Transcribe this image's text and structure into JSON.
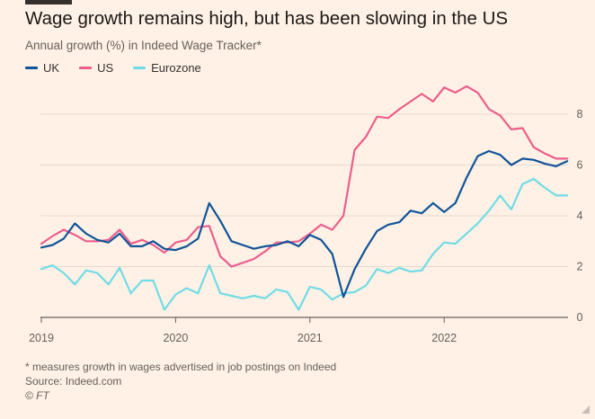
{
  "header": {
    "title": "Wage growth remains high, but has been slowing in the US",
    "subtitle": "Annual growth (%) in Indeed Wage Tracker*"
  },
  "footer": {
    "note": "* measures growth in wages advertised in job postings on Indeed",
    "source": "Source: Indeed.com",
    "credit": "© FT"
  },
  "colors": {
    "background": "#fff1e5",
    "uk": "#0f5499",
    "us": "#eb5e8d",
    "eurozone": "#70dce6"
  },
  "chart_data": {
    "type": "line",
    "title": "Wage growth remains high, but has been slowing in the US",
    "subtitle": "Annual growth (%) in Indeed Wage Tracker*",
    "xlabel": "",
    "ylabel": "",
    "x_ticks": [
      "2019",
      "2020",
      "2021",
      "2022"
    ],
    "y_ticks": [
      "0",
      "2",
      "4",
      "6",
      "8"
    ],
    "ylim": [
      0,
      9.5
    ],
    "grid": true,
    "legend_position": "top-left",
    "x": [
      "2019-01",
      "2019-02",
      "2019-03",
      "2019-04",
      "2019-05",
      "2019-06",
      "2019-07",
      "2019-08",
      "2019-09",
      "2019-10",
      "2019-11",
      "2019-12",
      "2020-01",
      "2020-02",
      "2020-03",
      "2020-04",
      "2020-05",
      "2020-06",
      "2020-07",
      "2020-08",
      "2020-09",
      "2020-10",
      "2020-11",
      "2020-12",
      "2021-01",
      "2021-02",
      "2021-03",
      "2021-04",
      "2021-05",
      "2021-06",
      "2021-07",
      "2021-08",
      "2021-09",
      "2021-10",
      "2021-11",
      "2021-12",
      "2022-01",
      "2022-02",
      "2022-03",
      "2022-04",
      "2022-05",
      "2022-06",
      "2022-07",
      "2022-08",
      "2022-09",
      "2022-10",
      "2022-11",
      "2022-12"
    ],
    "series": [
      {
        "name": "UK",
        "color": "#0f5499",
        "values": [
          2.75,
          2.85,
          3.1,
          3.7,
          3.3,
          3.05,
          2.95,
          3.3,
          2.8,
          2.8,
          3.0,
          2.7,
          2.65,
          2.8,
          3.1,
          4.5,
          3.8,
          3.0,
          2.85,
          2.7,
          2.8,
          2.85,
          3.0,
          2.8,
          3.25,
          3.05,
          2.5,
          0.8,
          1.9,
          2.7,
          3.4,
          3.65,
          3.75,
          4.2,
          4.1,
          4.5,
          4.15,
          4.5,
          5.5,
          6.35,
          6.55,
          6.4,
          6.0,
          6.25,
          6.2,
          6.05,
          5.95,
          6.15
        ]
      },
      {
        "name": "US",
        "color": "#eb5e8d",
        "values": [
          2.9,
          3.2,
          3.45,
          3.25,
          3.0,
          3.0,
          3.05,
          3.45,
          2.9,
          3.05,
          2.85,
          2.55,
          2.95,
          3.05,
          3.55,
          3.6,
          2.4,
          2.0,
          2.15,
          2.3,
          2.6,
          2.95,
          2.95,
          3.0,
          3.3,
          3.65,
          3.45,
          4.0,
          6.6,
          7.1,
          7.9,
          7.85,
          8.2,
          8.5,
          8.8,
          8.5,
          9.05,
          8.85,
          9.1,
          8.85,
          8.2,
          7.95,
          7.4,
          7.45,
          6.7,
          6.45,
          6.25,
          6.25
        ]
      },
      {
        "name": "Eurozone",
        "color": "#70dce6",
        "values": [
          1.9,
          2.05,
          1.75,
          1.3,
          1.85,
          1.75,
          1.3,
          1.95,
          0.95,
          1.45,
          1.45,
          0.3,
          0.9,
          1.15,
          0.95,
          2.05,
          0.95,
          0.85,
          0.75,
          0.85,
          0.75,
          1.1,
          1.0,
          0.3,
          1.2,
          1.1,
          0.7,
          0.95,
          1.0,
          1.25,
          1.9,
          1.75,
          1.95,
          1.8,
          1.85,
          2.5,
          2.95,
          2.9,
          3.3,
          3.7,
          4.2,
          4.8,
          4.25,
          5.25,
          5.45,
          5.1,
          4.8,
          4.8
        ]
      }
    ]
  }
}
